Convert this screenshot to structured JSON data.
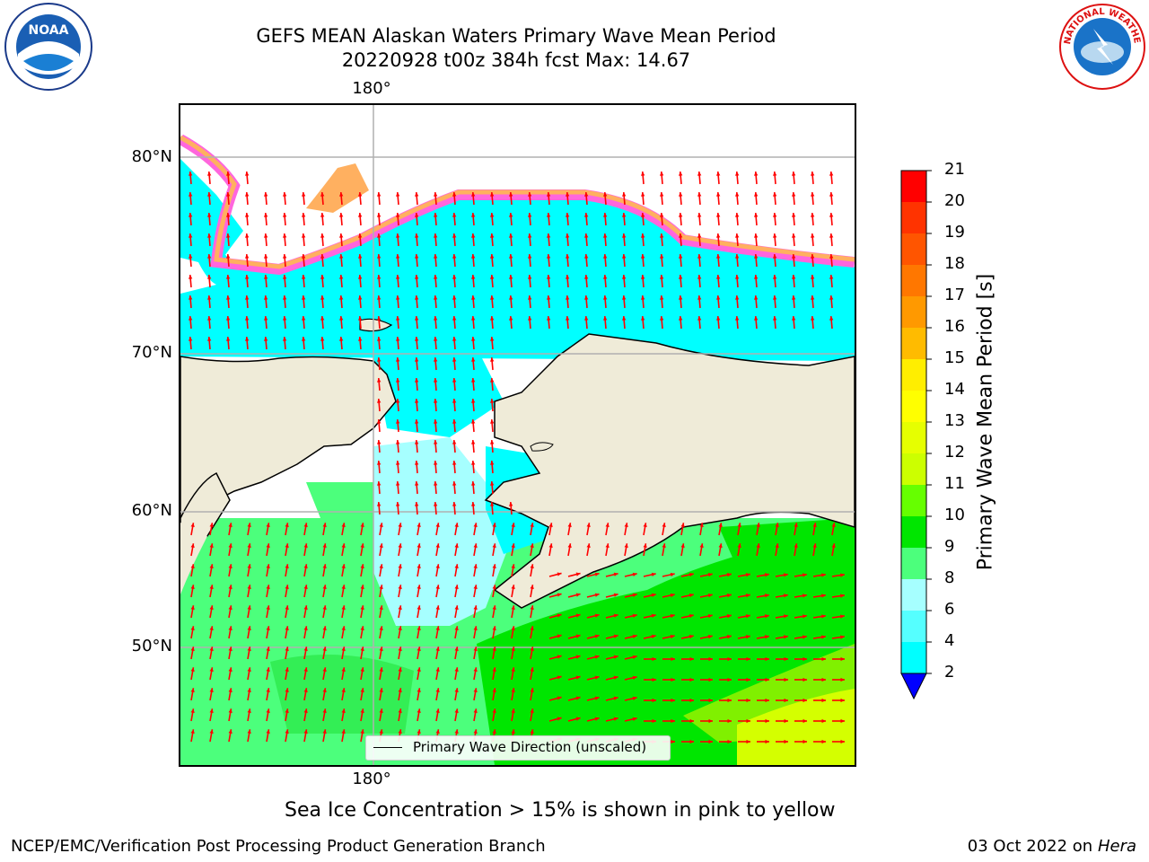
{
  "header": {
    "title_line1": "GEFS MEAN Alaskan Waters Primary Wave Mean Period",
    "title_line2": "20220928 t00z 384h fcst   Max: 14.67"
  },
  "map": {
    "lat_labels": [
      "80°N",
      "70°N",
      "60°N",
      "50°N"
    ],
    "lon_label_top": "180°",
    "lon_label_bottom": "180°",
    "legend_label": "Primary Wave Direction (unscaled)",
    "colors": {
      "land": "#efebd8",
      "ocean_cyan": "#00ffff",
      "ocean_lightcyan": "#a6ffff",
      "ocean_green": "#4cff7c",
      "ocean_brightgreen": "#00e600",
      "ocean_yellowgreen": "#80f000",
      "ocean_yellow": "#d4ff00",
      "ice_pink": "#ff66dd",
      "ice_orange": "#ffb060",
      "arrow": "#ff0000"
    }
  },
  "colorbar": {
    "title": "Primary Wave Mean Period [s]",
    "ticks": [
      "21",
      "20",
      "19",
      "18",
      "17",
      "16",
      "15",
      "14",
      "13",
      "12",
      "11",
      "10",
      "9",
      "8",
      "6",
      "4",
      "2"
    ],
    "colors": [
      "#ff0000",
      "#ff3300",
      "#ff5500",
      "#ff7700",
      "#ff9900",
      "#ffbb00",
      "#ffee00",
      "#ffff00",
      "#e6ff00",
      "#ccff00",
      "#66ff00",
      "#00e600",
      "#4cff7c",
      "#a6ffff",
      "#55ffff",
      "#00ffff",
      "#0077ff"
    ],
    "extend_color": "#0000ff"
  },
  "footer": {
    "ice_note": "Sea Ice Concentration > 15% is shown in pink to yellow",
    "left": "NCEP/EMC/Verification Post Processing Product Generation Branch",
    "date": "03 Oct 2022 on",
    "machine": "Hera"
  },
  "logos": {
    "noaa_text": "NOAA",
    "nws_text": "NATIONAL WEATHER SERVICE"
  }
}
